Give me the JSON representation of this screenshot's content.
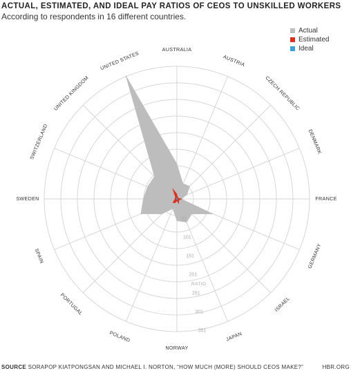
{
  "chart_data": {
    "type": "radar",
    "title": "ACTUAL, ESTIMATED, AND IDEAL PAY RATIOS OF CEOS TO UNSKILLED WORKERS",
    "subtitle": "According to respondents in 16 different countries.",
    "axis_label": "RATIO",
    "ticks": [
      1,
      51,
      101,
      151,
      201,
      251,
      301,
      351
    ],
    "rmax": 351,
    "categories": [
      "AUSTRALIA",
      "AUSTRIA",
      "CZECH REPUBLIC",
      "DENMARK",
      "FRANCE",
      "GERMANY",
      "ISRAEL",
      "JAPAN",
      "NORWAY",
      "POLAND",
      "PORTUGAL",
      "SPAIN",
      "SWEDEN",
      "SWITZERLAND",
      "UNITED KINGDOM",
      "UNITED STATES"
    ],
    "series": [
      {
        "name": "Actual",
        "color": "#bdbdbd",
        "values": [
          93,
          43,
          48,
          29,
          12,
          104,
          56,
          67,
          58,
          28,
          56,
          103,
          89,
          84,
          84,
          354
        ]
      },
      {
        "name": "Estimated",
        "color": "#d9301f",
        "values": [
          13,
          5,
          5,
          5,
          14,
          7,
          7,
          14,
          5,
          11,
          15,
          8,
          5,
          6,
          5,
          30
        ]
      },
      {
        "name": "Ideal",
        "color": "#3aa0d8",
        "values": [
          2,
          2,
          2,
          2,
          2,
          2,
          2,
          2,
          2,
          2,
          2,
          2,
          2,
          2,
          2,
          3
        ]
      }
    ],
    "legend_position": "top-right",
    "grid": true
  },
  "footer": {
    "source_label": "SOURCE",
    "source_text": "SORAPOP KIATPONGSAN AND MICHAEL I. NORTON, “HOW MUCH (MORE) SHOULD CEOS MAKE?”",
    "site": "HBR.ORG"
  }
}
